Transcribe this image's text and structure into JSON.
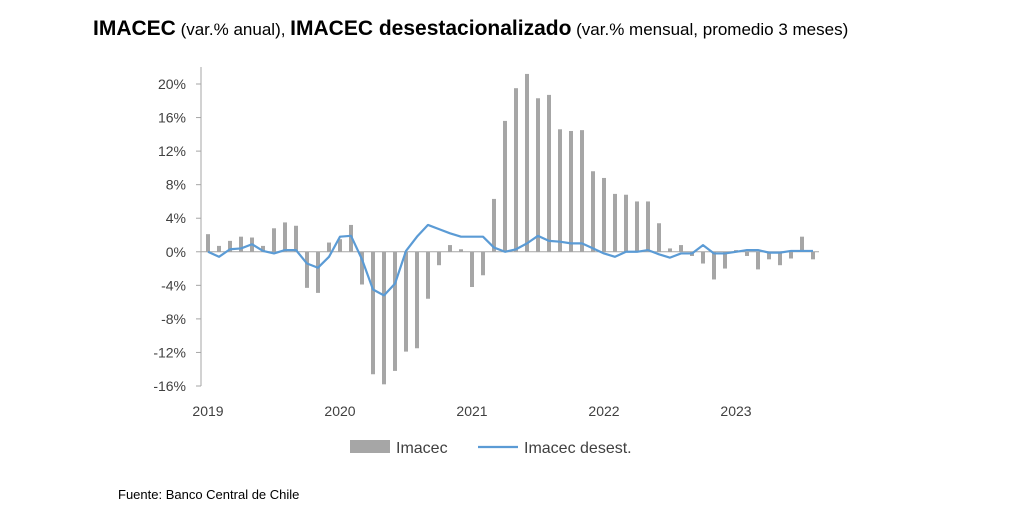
{
  "title": {
    "part1_bold": "IMACEC",
    "part1_normal": " (var.% anual), ",
    "part2_bold": "IMACEC desestacionalizado",
    "part2_normal": " (var.% mensual, promedio 3 meses)"
  },
  "source": "Fuente: Banco Central de Chile",
  "colors": {
    "bars": "#a6a6a6",
    "line": "#5b9bd5"
  },
  "chart_data": {
    "type": "bar+line",
    "title": "IMACEC (var.% anual), IMACEC desestacionalizado (var.% mensual, promedio 3 meses)",
    "x_start": "2019-01",
    "x_frequency": "monthly",
    "x_tick_labels": [
      "2019",
      "2020",
      "2021",
      "2022",
      "2023"
    ],
    "y_tick_labels": [
      "20%",
      "16%",
      "12%",
      "8%",
      "4%",
      "0%",
      "-4%",
      "-8%",
      "-12%",
      "-16%"
    ],
    "ylim": [
      -16,
      20
    ],
    "y_unit": "%",
    "legend_position": "bottom",
    "series": [
      {
        "name": "Imacec",
        "type": "bar",
        "values": [
          2.1,
          0.7,
          1.3,
          1.8,
          1.7,
          0.7,
          2.8,
          3.5,
          3.1,
          -4.3,
          -4.9,
          1.1,
          1.5,
          3.2,
          -3.9,
          -14.6,
          -15.8,
          -14.2,
          -11.9,
          -11.5,
          -5.6,
          -1.6,
          0.8,
          0.3,
          -4.2,
          -2.8,
          6.3,
          15.6,
          19.5,
          21.2,
          18.3,
          18.7,
          14.6,
          14.4,
          14.5,
          9.6,
          8.8,
          6.9,
          6.8,
          6.0,
          6.0,
          3.4,
          0.4,
          0.8,
          -0.5,
          -1.4,
          -3.3,
          -2.0,
          0.2,
          -0.5,
          -2.1,
          -0.9,
          -1.6,
          -0.8,
          1.8,
          -0.9
        ]
      },
      {
        "name": "Imacec desest.",
        "type": "line",
        "values": [
          0,
          -0.6,
          0.3,
          0.4,
          0.9,
          0.1,
          -0.2,
          0.2,
          0.2,
          -1.4,
          -1.9,
          -0.6,
          1.8,
          1.9,
          -0.9,
          -4.5,
          -5.2,
          -3.8,
          0.1,
          1.8,
          3.2,
          2.7,
          2.2,
          1.8,
          1.8,
          1.8,
          0.5,
          0,
          0.3,
          1.0,
          1.9,
          1.3,
          1.2,
          1.0,
          1.0,
          0.4,
          -0.2,
          -0.6,
          0,
          0,
          0.2,
          -0.3,
          -0.7,
          -0.2,
          -0.2,
          0.8,
          -0.2,
          -0.2,
          0,
          0.2,
          0.2,
          -0.1,
          -0.1,
          0.1,
          0.1,
          0.1
        ]
      }
    ]
  }
}
